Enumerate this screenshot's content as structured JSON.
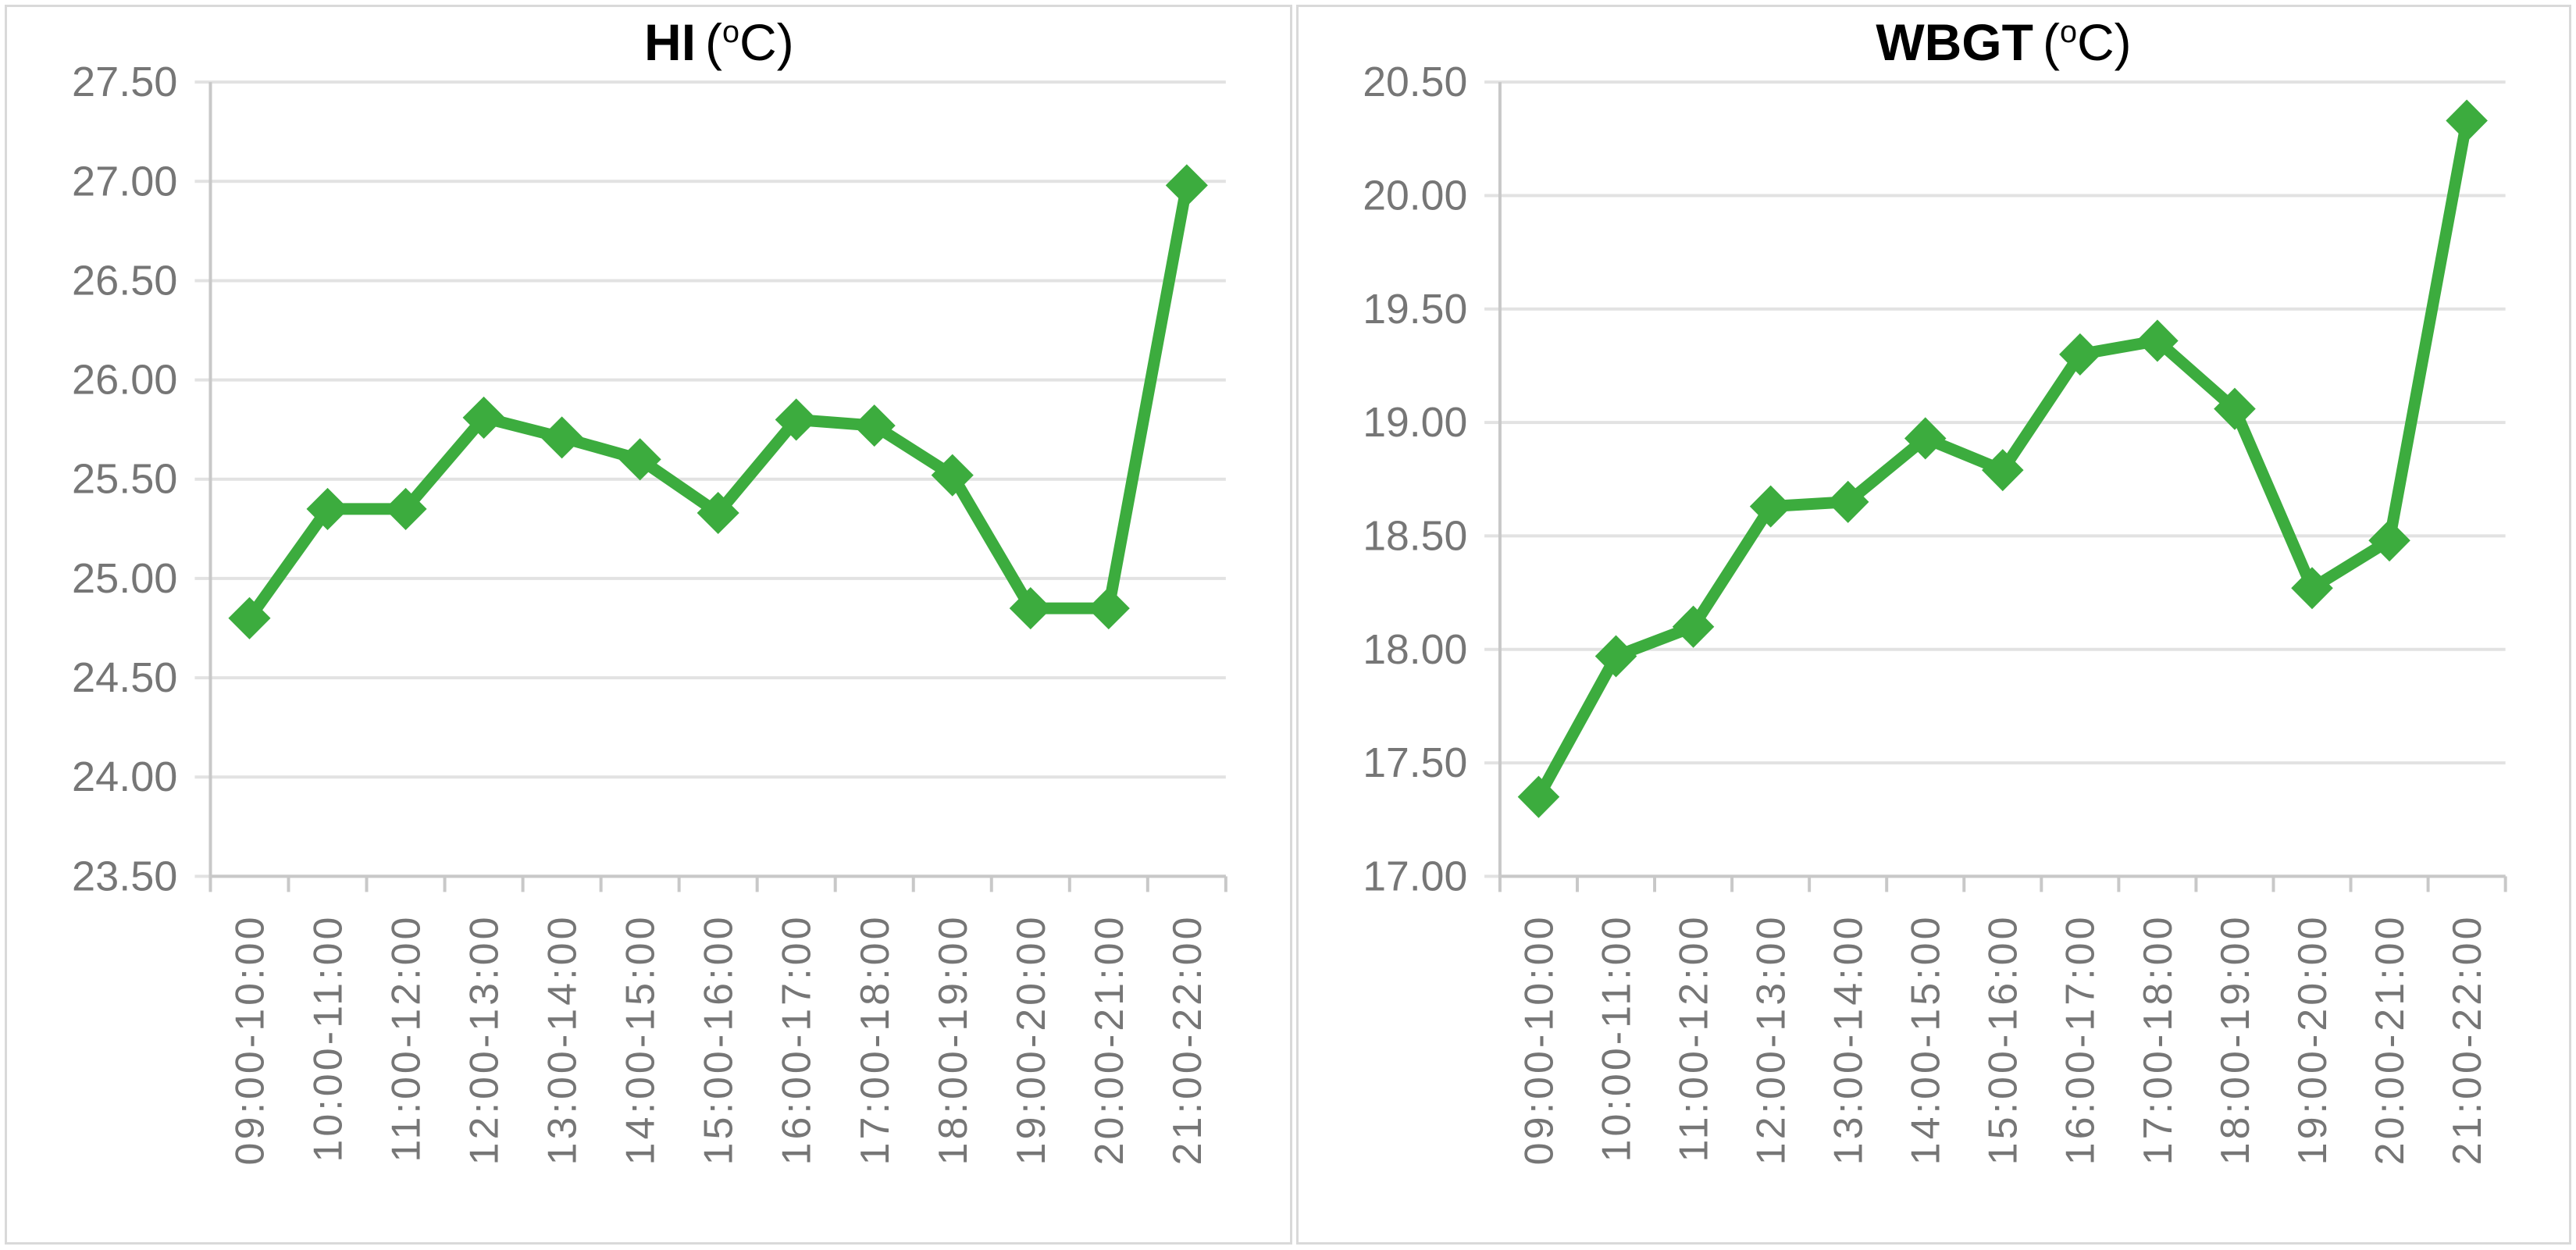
{
  "colors": {
    "series_green": "#3cac3e",
    "gridline": "#e2e2e2",
    "axis_line": "#c8c8c8",
    "tick_label": "#767676",
    "title_text": "#000000",
    "panel_border": "#d9d9d9",
    "background": "#ffffff"
  },
  "chart_data": [
    {
      "type": "line",
      "title": "HI (oC)",
      "title_main": "HI",
      "title_unit_open": "(",
      "title_unit_sup": "o",
      "title_unit_close": "C)",
      "categories": [
        "09:00-10:00",
        "10:00-11:00",
        "11:00-12:00",
        "12:00-13:00",
        "13:00-14:00",
        "14:00-15:00",
        "15:00-16:00",
        "16:00-17:00",
        "17:00-18:00",
        "18:00-19:00",
        "19:00-20:00",
        "20:00-21:00",
        "21:00-22:00"
      ],
      "values": [
        24.8,
        25.35,
        25.35,
        25.81,
        25.71,
        25.6,
        25.33,
        25.8,
        25.77,
        25.52,
        24.85,
        24.85,
        26.98
      ],
      "ylim": [
        23.5,
        27.5
      ],
      "ytick_step": 0.5,
      "yticks": [
        "27.50",
        "27.00",
        "26.50",
        "26.00",
        "25.50",
        "25.00",
        "24.50",
        "24.00",
        "23.50"
      ],
      "marker": "diamond",
      "grid": "horizontal",
      "legend": "none",
      "xlabel": "",
      "ylabel": ""
    },
    {
      "type": "line",
      "title": "WBGT (oC)",
      "title_main": "WBGT",
      "title_unit_open": "(",
      "title_unit_sup": "o",
      "title_unit_close": "C)",
      "categories": [
        "09:00-10:00",
        "10:00-11:00",
        "11:00-12:00",
        "12:00-13:00",
        "13:00-14:00",
        "14:00-15:00",
        "15:00-16:00",
        "16:00-17:00",
        "17:00-18:00",
        "18:00-19:00",
        "19:00-20:00",
        "20:00-21:00",
        "21:00-22:00"
      ],
      "values": [
        17.35,
        17.97,
        18.1,
        18.63,
        18.65,
        18.93,
        18.79,
        19.3,
        19.36,
        19.06,
        18.27,
        18.48,
        20.33
      ],
      "ylim": [
        17.0,
        20.5
      ],
      "ytick_step": 0.5,
      "yticks": [
        "20.50",
        "20.00",
        "19.50",
        "19.00",
        "18.50",
        "18.00",
        "17.50",
        "17.00"
      ],
      "marker": "diamond",
      "grid": "horizontal",
      "legend": "none",
      "xlabel": "",
      "ylabel": ""
    }
  ]
}
